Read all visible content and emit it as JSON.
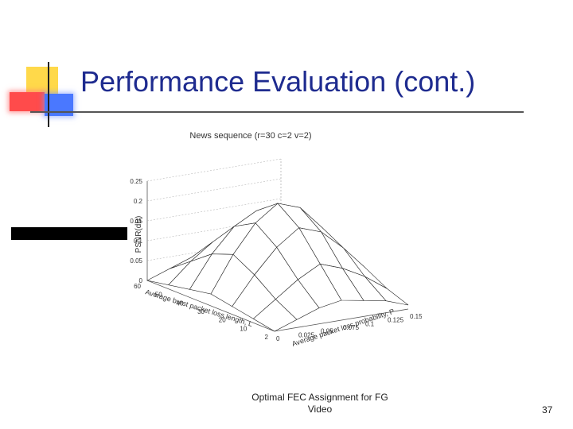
{
  "slide": {
    "title": "Performance Evaluation (cont.)",
    "footer_line1": "Optimal FEC Assignment for FG",
    "footer_line2": "Video",
    "page_number": "37"
  },
  "colors": {
    "title": "#1e2b8f",
    "accent_yellow": "#ffd94a",
    "accent_red": "#ff4b4b",
    "accent_blue": "#4a78ff"
  },
  "chart_data": {
    "type": "surface3d",
    "title": "News sequence (r=30 c=2 v=2)",
    "zlabel": "PSNR(dB)",
    "xlabel": "Average burst packet loss length, L",
    "ylabel": "Average packet loss probability, P",
    "z_ticks": [
      "0",
      "0.05",
      "0.1",
      "0.15",
      "0.2",
      "0.25"
    ],
    "x_ticks": [
      "60",
      "50",
      "40",
      "30",
      "20",
      "10",
      "2"
    ],
    "y_ticks": [
      "0",
      "0.025",
      "0.05",
      "0.075",
      "0.1",
      "0.125",
      "0.15"
    ],
    "zlim": [
      0,
      0.25
    ],
    "grid": true,
    "x": [
      2,
      10,
      20,
      30,
      40,
      50,
      60
    ],
    "y": [
      0,
      0.025,
      0.05,
      0.075,
      0.1,
      0.125,
      0.15
    ],
    "z": [
      [
        0.0,
        0.01,
        0.02,
        0.03,
        0.02,
        0.01,
        0.0
      ],
      [
        0.02,
        0.06,
        0.1,
        0.12,
        0.09,
        0.05,
        0.02
      ],
      [
        0.04,
        0.1,
        0.16,
        0.19,
        0.15,
        0.09,
        0.04
      ],
      [
        0.05,
        0.12,
        0.19,
        0.23,
        0.19,
        0.12,
        0.05
      ],
      [
        0.04,
        0.11,
        0.18,
        0.21,
        0.17,
        0.1,
        0.04
      ],
      [
        0.03,
        0.08,
        0.13,
        0.15,
        0.12,
        0.07,
        0.03
      ],
      [
        0.01,
        0.04,
        0.07,
        0.08,
        0.06,
        0.03,
        0.01
      ]
    ]
  }
}
